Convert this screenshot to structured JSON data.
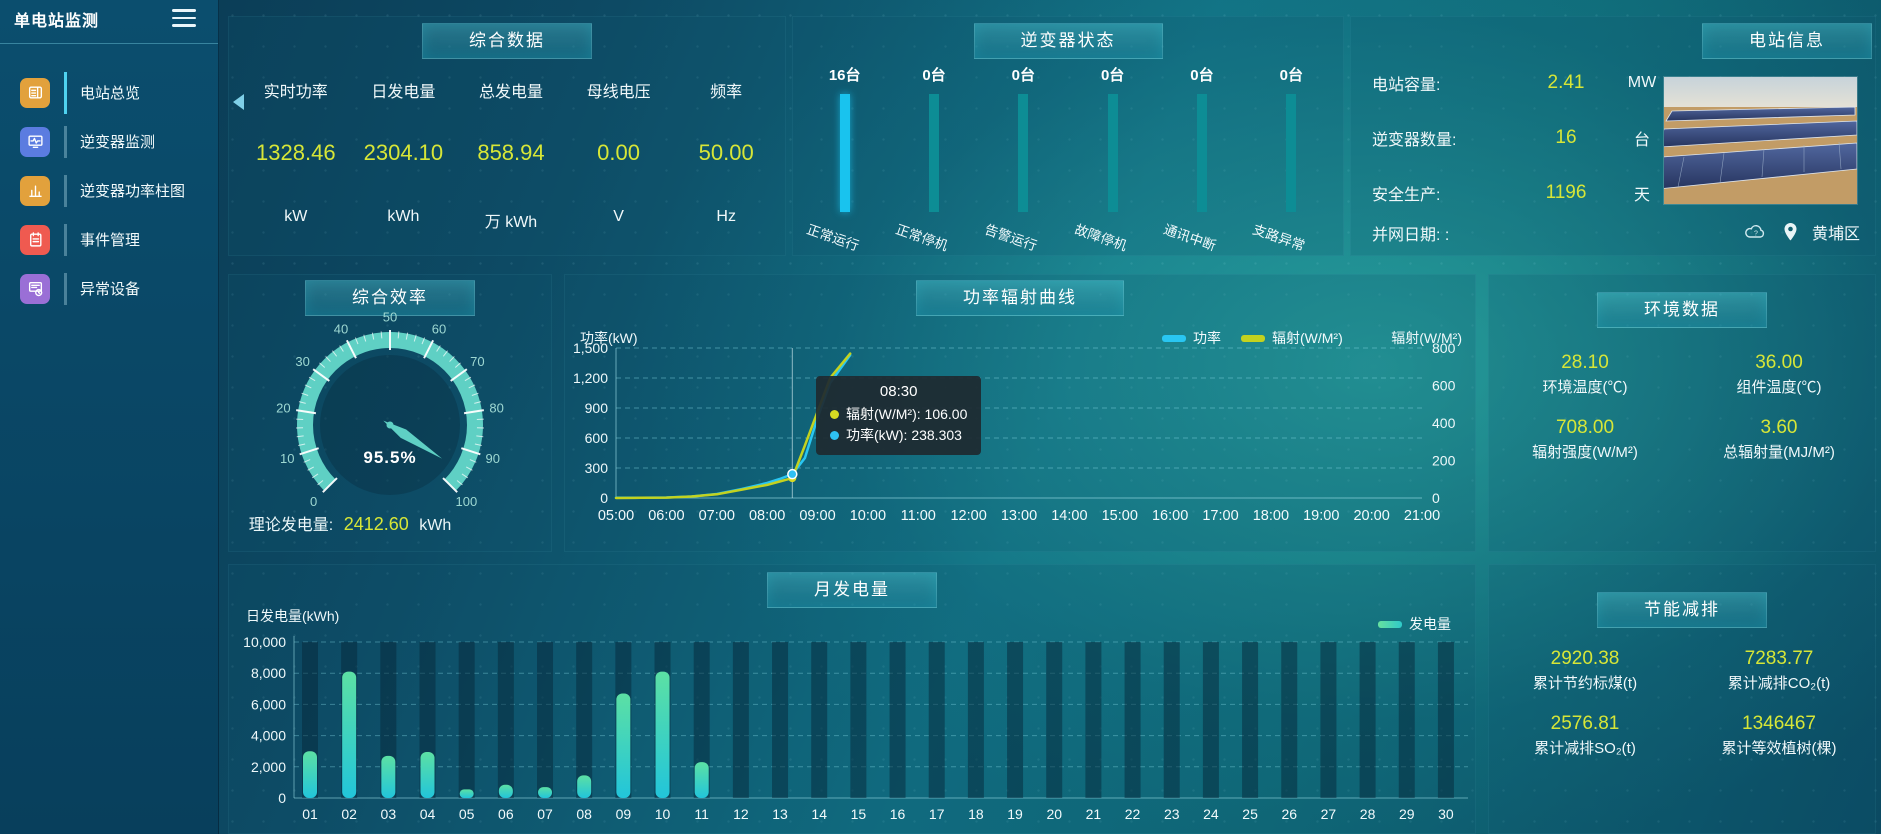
{
  "app": {
    "title": "单电站监测",
    "district": "黄埔区"
  },
  "sidebar": {
    "items": [
      {
        "label": "电站总览",
        "icon": "overview-icon",
        "color": "#e2a13c",
        "active": true
      },
      {
        "label": "逆变器监测",
        "icon": "inverter-monitor-icon",
        "color": "#5b7ce0",
        "active": false
      },
      {
        "label": "逆变器功率柱图",
        "icon": "power-bars-icon",
        "color": "#e2a13c",
        "active": false
      },
      {
        "label": "事件管理",
        "icon": "event-notebook-icon",
        "color": "#ef5a50",
        "active": false
      },
      {
        "label": "异常设备",
        "icon": "abnormal-device-icon",
        "color": "#9a6fd6",
        "active": false
      }
    ]
  },
  "panels": {
    "summary": {
      "title": "综合数据",
      "metrics": [
        {
          "label": "实时功率",
          "value": "1328.46",
          "unit": "kW"
        },
        {
          "label": "日发电量",
          "value": "2304.10",
          "unit": "kWh"
        },
        {
          "label": "总发电量",
          "value": "858.94",
          "unit": "万 kWh"
        },
        {
          "label": "母线电压",
          "value": "0.00",
          "unit": "V"
        },
        {
          "label": "频率",
          "value": "50.00",
          "unit": "Hz"
        }
      ]
    },
    "inverter_status": {
      "title": "逆变器状态",
      "bars": [
        {
          "count": "16台",
          "label": "正常运行",
          "highlight": true
        },
        {
          "count": "0台",
          "label": "正常停机",
          "highlight": false
        },
        {
          "count": "0台",
          "label": "告警运行",
          "highlight": false
        },
        {
          "count": "0台",
          "label": "故障停机",
          "highlight": false
        },
        {
          "count": "0台",
          "label": "通讯中断",
          "highlight": false
        },
        {
          "count": "0台",
          "label": "支路异常",
          "highlight": false
        }
      ]
    },
    "station_info": {
      "title": "电站信息",
      "rows": [
        {
          "label": "电站容量:",
          "value": "2.41",
          "unit": "MW"
        },
        {
          "label": "逆变器数量:",
          "value": "16",
          "unit": "台"
        },
        {
          "label": "安全生产:",
          "value": "1196",
          "unit": "天"
        },
        {
          "label": "并网日期: :",
          "value": "",
          "unit": ""
        }
      ]
    },
    "efficiency": {
      "title": "综合效率",
      "value_display": "95.5%",
      "theory": {
        "label": "理论发电量:",
        "value": "2412.60",
        "unit": "kWh"
      }
    },
    "power_curve": {
      "title": "功率辐射曲线",
      "y_left": "功率(kW)",
      "y_right": "辐射(W/M²)",
      "left_ticks": [
        "0",
        "300",
        "600",
        "900",
        "1,200",
        "1,500"
      ],
      "right_ticks": [
        "0",
        "200",
        "400",
        "600",
        "800"
      ],
      "x_labels": [
        "05:00",
        "06:00",
        "07:00",
        "08:00",
        "09:00",
        "10:00",
        "11:00",
        "12:00",
        "13:00",
        "14:00",
        "15:00",
        "16:00",
        "17:00",
        "18:00",
        "19:00",
        "20:00",
        "21:00"
      ],
      "legend": [
        {
          "label": "功率",
          "color": "#29c6f2"
        },
        {
          "label": "辐射(W/M²)",
          "color": "#c3d21f"
        }
      ],
      "tooltip": {
        "time": "08:30",
        "rows": [
          {
            "dot": "#d6da22",
            "text": "辐射(W/M²): 106.00"
          },
          {
            "dot": "#2ec0f2",
            "text": "功率(kW): 238.303"
          }
        ]
      }
    },
    "environment": {
      "title": "环境数据",
      "metrics": [
        {
          "value": "28.10",
          "label": "环境温度(℃)"
        },
        {
          "value": "36.00",
          "label": "组件温度(℃)"
        },
        {
          "value": "708.00",
          "label": "辐射强度(W/M²)"
        },
        {
          "value": "3.60",
          "label": "总辐射量(MJ/M²)"
        }
      ]
    },
    "monthly": {
      "title": "月发电量",
      "y_label": "日发电量(kWh)",
      "legend": "发电量",
      "y_ticks": [
        "0",
        "2,000",
        "4,000",
        "6,000",
        "8,000",
        "10,000"
      ]
    },
    "saving": {
      "title": "节能减排",
      "metrics": [
        {
          "value": "2920.38",
          "label": "累计节约标煤(t)"
        },
        {
          "value": "7283.77",
          "label": "累计减排CO₂(t)"
        },
        {
          "value": "2576.81",
          "label": "累计减排SO₂(t)"
        },
        {
          "value": "1346467",
          "label": "累计等效植树(棵)"
        }
      ]
    }
  },
  "chart_data": [
    {
      "id": "inverter_status",
      "type": "bar",
      "title": "逆变器状态",
      "categories": [
        "正常运行",
        "正常停机",
        "告警运行",
        "故障停机",
        "通讯中断",
        "支路异常"
      ],
      "values": [
        16,
        0,
        0,
        0,
        0,
        0
      ],
      "unit": "台"
    },
    {
      "id": "comprehensive_efficiency",
      "type": "gauge",
      "title": "综合效率",
      "value": 95.5,
      "min": 0,
      "max": 100,
      "unit": "%",
      "tick_step": 10
    },
    {
      "id": "power_radiation_curve",
      "type": "line",
      "title": "功率辐射曲线",
      "x_range_hours": [
        5,
        21
      ],
      "y_left": {
        "label": "功率(kW)",
        "range": [
          0,
          1500
        ]
      },
      "y_right": {
        "label": "辐射(W/M²)",
        "range": [
          0,
          800
        ]
      },
      "series": [
        {
          "name": "功率",
          "axis": "left",
          "color": "#29c6f2",
          "points": [
            [
              5,
              2
            ],
            [
              5.5,
              3
            ],
            [
              6,
              5
            ],
            [
              6.5,
              15
            ],
            [
              7,
              40
            ],
            [
              7.5,
              90
            ],
            [
              8,
              150
            ],
            [
              8.25,
              190
            ],
            [
              8.5,
              238.3
            ],
            [
              8.75,
              400
            ],
            [
              9,
              800
            ],
            [
              9.25,
              1150
            ],
            [
              9.65,
              1430
            ]
          ]
        },
        {
          "name": "辐射(W/M²)",
          "axis": "right",
          "color": "#c3d21f",
          "points": [
            [
              5,
              0
            ],
            [
              5.5,
              1
            ],
            [
              6,
              2
            ],
            [
              6.5,
              8
            ],
            [
              7,
              20
            ],
            [
              7.5,
              45
            ],
            [
              8,
              70
            ],
            [
              8.25,
              88
            ],
            [
              8.5,
              106
            ],
            [
              8.75,
              280
            ],
            [
              9,
              460
            ],
            [
              9.25,
              640
            ],
            [
              9.65,
              770
            ]
          ]
        }
      ],
      "highlight": {
        "hour": 8.5,
        "time": "08:30",
        "power": 238.303,
        "radiation": 106.0
      },
      "legend_position": "top-right",
      "grid": "dashed"
    },
    {
      "id": "monthly_generation",
      "type": "bar",
      "title": "月发电量",
      "ylabel": "日发电量(kWh)",
      "ylim": [
        0,
        10000
      ],
      "legend": [
        "发电量"
      ],
      "categories": [
        "01",
        "02",
        "03",
        "04",
        "05",
        "06",
        "07",
        "08",
        "09",
        "10",
        "11",
        "12",
        "13",
        "14",
        "15",
        "16",
        "17",
        "18",
        "19",
        "20",
        "21",
        "22",
        "23",
        "24",
        "25",
        "26",
        "27",
        "28",
        "29",
        "30"
      ],
      "values": [
        3000,
        8100,
        2700,
        2950,
        550,
        850,
        700,
        1450,
        6700,
        8100,
        2300,
        0,
        0,
        0,
        0,
        0,
        0,
        0,
        0,
        0,
        0,
        0,
        0,
        0,
        0,
        0,
        0,
        0,
        0,
        0
      ]
    }
  ]
}
